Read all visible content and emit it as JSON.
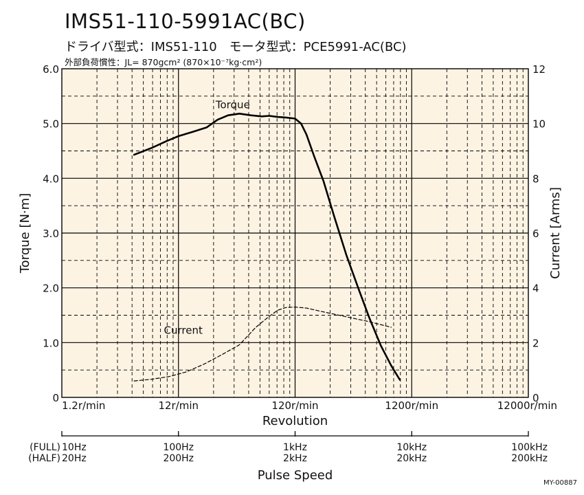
{
  "header": {
    "title": "IMS51-110-5991AC(BC)",
    "subtitle": "ドライバ型式：IMS51-110　モータ型式：PCE5991-AC(BC)",
    "inertia_note": "外部負荷慣性：JL= 870gcm² (870×10⁻⁷kg·cm²)"
  },
  "figure_code": "MY-00887",
  "colors": {
    "plot_background": "#fdf3e3",
    "grid": "#000000",
    "curve": "#000000"
  },
  "chart_data": {
    "type": "line",
    "title": "IMS51-110-5991AC(BC)",
    "xscale": "log",
    "xlim": [
      1.2,
      12000
    ],
    "ylim": [
      0,
      6.0
    ],
    "y2lim": [
      0,
      12
    ],
    "grid": true,
    "xlabel": "Revolution",
    "ylabel": "Torque [N·m]",
    "y2label": "Current [Arms]",
    "x_tick_labels": [
      "1.2r/min",
      "12r/min",
      "120r/min",
      "1200r/min",
      "12000r/min"
    ],
    "y_tick_labels": [
      "0",
      "1.0",
      "2.0",
      "3.0",
      "4.0",
      "5.0",
      "6.0"
    ],
    "y2_tick_labels": [
      "0",
      "2",
      "4",
      "6",
      "8",
      "10",
      "12"
    ],
    "series": [
      {
        "name": "Torque",
        "axis": "left",
        "style": "solid",
        "x": [
          5.0,
          7.0,
          9.5,
          12.0,
          16.0,
          21.0,
          26.0,
          32.0,
          40.0,
          50.0,
          62.0,
          72.0,
          85.0,
          100.0,
          120.0,
          135.0,
          150.0,
          175.0,
          210.0,
          260.0,
          330.0,
          420.0,
          520.0,
          650.0,
          800.0,
          950.0
        ],
        "values": [
          4.43,
          4.55,
          4.68,
          4.77,
          4.85,
          4.93,
          5.07,
          5.15,
          5.18,
          5.15,
          5.13,
          5.14,
          5.12,
          5.11,
          5.09,
          5.0,
          4.8,
          4.4,
          3.95,
          3.3,
          2.6,
          1.98,
          1.45,
          0.95,
          0.58,
          0.32
        ]
      },
      {
        "name": "Current",
        "axis": "right",
        "style": "dashed",
        "x": [
          5.0,
          7.0,
          10.0,
          14.0,
          20.0,
          28.0,
          40.0,
          55.0,
          70.0,
          85.0,
          100.0,
          120.0,
          150.0,
          200.0,
          300.0,
          500.0,
          800.0
        ],
        "values": [
          0.6,
          0.66,
          0.76,
          0.93,
          1.22,
          1.55,
          1.92,
          2.55,
          2.92,
          3.18,
          3.28,
          3.3,
          3.26,
          3.14,
          2.98,
          2.78,
          2.56
        ]
      }
    ],
    "secondary_axis": {
      "label": "Pulse Speed",
      "row_labels": [
        "(FULL)",
        "(HALF)"
      ],
      "full_labels": [
        "10Hz",
        "100Hz",
        "1kHz",
        "10kHz",
        "100kHz"
      ],
      "half_labels": [
        "20Hz",
        "200Hz",
        "2kHz",
        "20kHz",
        "200kHz"
      ]
    },
    "annotations": [
      "Torque",
      "Current"
    ]
  }
}
